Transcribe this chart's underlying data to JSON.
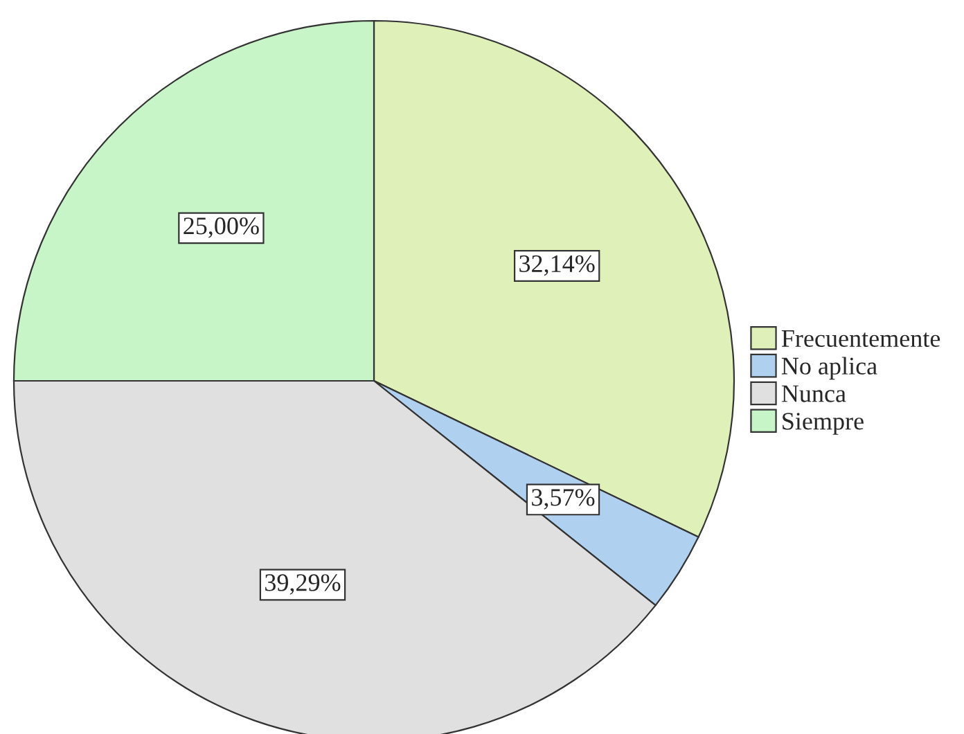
{
  "chart_data": {
    "type": "pie",
    "categories": [
      "Frecuentemente",
      "No aplica",
      "Nunca",
      "Siempre"
    ],
    "values": [
      32.14,
      3.57,
      39.29,
      25.0
    ],
    "colors": [
      "#dff0b8",
      "#b0d0f0",
      "#e0e0e0",
      "#c8f5c8"
    ],
    "value_labels": [
      "32,14%",
      "3,57%",
      "39,29%",
      "25,00%"
    ],
    "legend": "right"
  }
}
